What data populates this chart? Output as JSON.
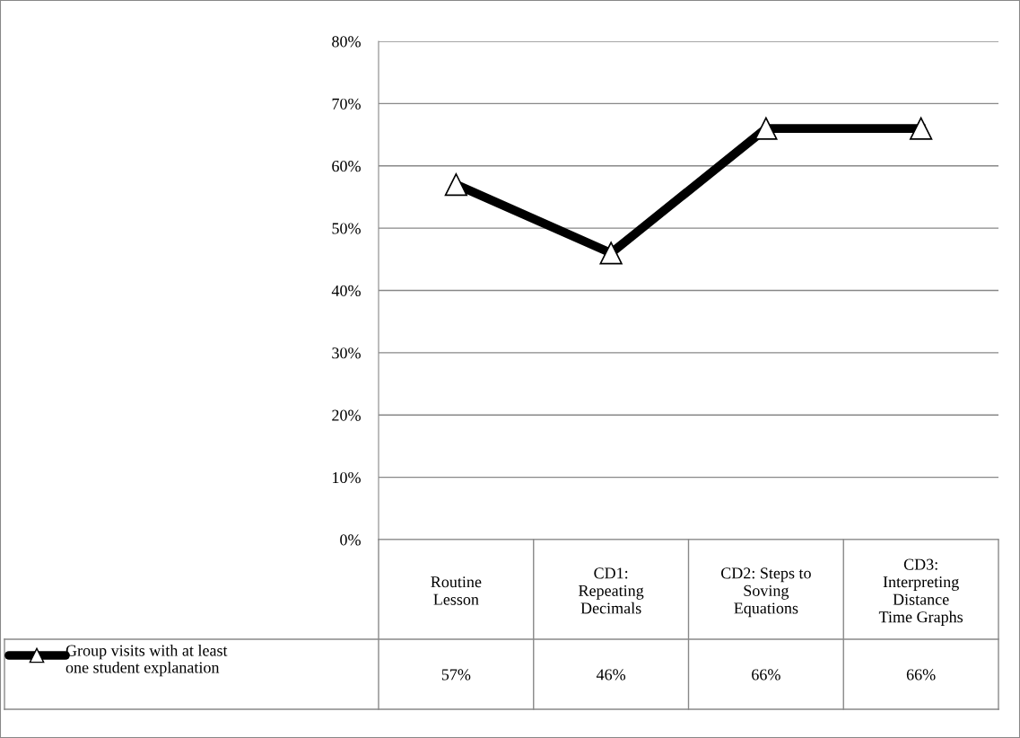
{
  "chart_data": {
    "type": "line",
    "categories": [
      "Routine\nLesson",
      "CD1:\nRepeating\nDecimals",
      "CD2: Steps to\nSoving\nEquations",
      "CD3:\nInterpreting\nDistance\nTime Graphs"
    ],
    "series": [
      {
        "name": "Group visits with at least\none student explanation",
        "color": "#000000",
        "values": [
          57,
          46,
          66,
          66
        ],
        "value_labels": [
          "57%",
          "46%",
          "66%",
          "66%"
        ]
      }
    ],
    "ylim": [
      0,
      80
    ],
    "yticks": [
      {
        "value": 0,
        "label": "0%"
      },
      {
        "value": 10,
        "label": "10%"
      },
      {
        "value": 20,
        "label": "20%"
      },
      {
        "value": 30,
        "label": "30%"
      },
      {
        "value": 40,
        "label": "40%"
      },
      {
        "value": 50,
        "label": "50%"
      },
      {
        "value": 60,
        "label": "60%"
      },
      {
        "value": 70,
        "label": "70%"
      },
      {
        "value": 80,
        "label": "80%"
      }
    ],
    "grid": "y",
    "marker": "triangle",
    "line_style": "solid",
    "legend": "bottom left"
  }
}
